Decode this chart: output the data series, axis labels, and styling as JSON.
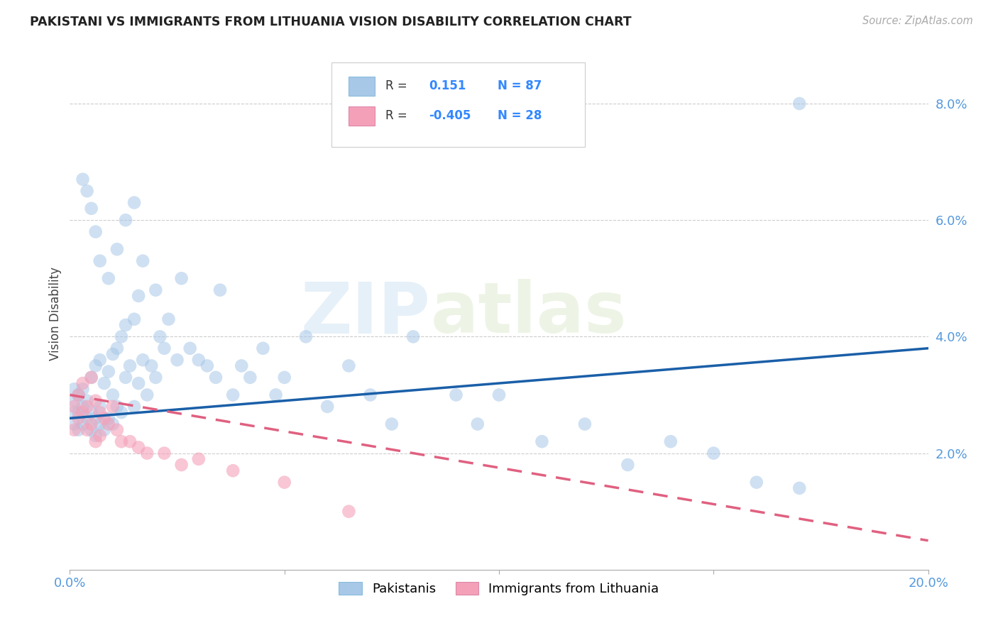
{
  "title": "PAKISTANI VS IMMIGRANTS FROM LITHUANIA VISION DISABILITY CORRELATION CHART",
  "source": "Source: ZipAtlas.com",
  "ylabel": "Vision Disability",
  "xlim": [
    0.0,
    0.2
  ],
  "ylim": [
    0.0,
    0.088
  ],
  "xticks": [
    0.0,
    0.05,
    0.1,
    0.15,
    0.2
  ],
  "xtick_labels": [
    "0.0%",
    "",
    "",
    "",
    "20.0%"
  ],
  "yticks": [
    0.0,
    0.02,
    0.04,
    0.06,
    0.08
  ],
  "ytick_labels": [
    "",
    "2.0%",
    "4.0%",
    "6.0%",
    "8.0%"
  ],
  "blue_R": 0.151,
  "blue_N": 87,
  "pink_R": -0.405,
  "pink_N": 28,
  "blue_color": "#a8c8e8",
  "pink_color": "#f4a0b8",
  "blue_line_color": "#1a5fa8",
  "pink_line_color": "#e06080",
  "watermark_zip": "ZIP",
  "watermark_atlas": "atlas",
  "legend_label_blue": "Pakistanis",
  "legend_label_pink": "Immigrants from Lithuania",
  "blue_scatter_x": [
    0.001,
    0.001,
    0.001,
    0.001,
    0.002,
    0.002,
    0.002,
    0.003,
    0.003,
    0.003,
    0.004,
    0.004,
    0.005,
    0.005,
    0.005,
    0.006,
    0.006,
    0.006,
    0.007,
    0.007,
    0.007,
    0.008,
    0.008,
    0.009,
    0.009,
    0.01,
    0.01,
    0.01,
    0.011,
    0.011,
    0.012,
    0.012,
    0.013,
    0.013,
    0.014,
    0.015,
    0.015,
    0.016,
    0.016,
    0.017,
    0.018,
    0.019,
    0.02,
    0.021,
    0.022,
    0.023,
    0.025,
    0.026,
    0.028,
    0.03,
    0.032,
    0.034,
    0.035,
    0.038,
    0.04,
    0.042,
    0.045,
    0.048,
    0.05,
    0.055,
    0.06,
    0.065,
    0.07,
    0.075,
    0.08,
    0.09,
    0.095,
    0.1,
    0.11,
    0.12,
    0.13,
    0.14,
    0.15,
    0.16,
    0.17,
    0.004,
    0.003,
    0.005,
    0.006,
    0.007,
    0.009,
    0.011,
    0.013,
    0.015,
    0.017,
    0.02,
    0.17
  ],
  "blue_scatter_y": [
    0.025,
    0.027,
    0.029,
    0.031,
    0.024,
    0.027,
    0.03,
    0.025,
    0.028,
    0.031,
    0.026,
    0.029,
    0.024,
    0.027,
    0.033,
    0.023,
    0.026,
    0.035,
    0.025,
    0.028,
    0.036,
    0.024,
    0.032,
    0.026,
    0.034,
    0.025,
    0.03,
    0.037,
    0.028,
    0.038,
    0.027,
    0.04,
    0.033,
    0.042,
    0.035,
    0.028,
    0.043,
    0.032,
    0.047,
    0.036,
    0.03,
    0.035,
    0.033,
    0.04,
    0.038,
    0.043,
    0.036,
    0.05,
    0.038,
    0.036,
    0.035,
    0.033,
    0.048,
    0.03,
    0.035,
    0.033,
    0.038,
    0.03,
    0.033,
    0.04,
    0.028,
    0.035,
    0.03,
    0.025,
    0.04,
    0.03,
    0.025,
    0.03,
    0.022,
    0.025,
    0.018,
    0.022,
    0.02,
    0.015,
    0.014,
    0.065,
    0.067,
    0.062,
    0.058,
    0.053,
    0.05,
    0.055,
    0.06,
    0.063,
    0.053,
    0.048,
    0.08
  ],
  "pink_scatter_x": [
    0.001,
    0.001,
    0.002,
    0.002,
    0.003,
    0.003,
    0.004,
    0.004,
    0.005,
    0.005,
    0.006,
    0.006,
    0.007,
    0.007,
    0.008,
    0.009,
    0.01,
    0.011,
    0.012,
    0.014,
    0.016,
    0.018,
    0.022,
    0.026,
    0.03,
    0.038,
    0.05,
    0.065
  ],
  "pink_scatter_y": [
    0.028,
    0.024,
    0.03,
    0.026,
    0.032,
    0.027,
    0.028,
    0.024,
    0.033,
    0.025,
    0.029,
    0.022,
    0.027,
    0.023,
    0.026,
    0.025,
    0.028,
    0.024,
    0.022,
    0.022,
    0.021,
    0.02,
    0.02,
    0.018,
    0.019,
    0.017,
    0.015,
    0.01
  ],
  "blue_trend_x": [
    0.0,
    0.2
  ],
  "blue_trend_y": [
    0.026,
    0.038
  ],
  "pink_trend_x": [
    0.0,
    0.2
  ],
  "pink_trend_y": [
    0.03,
    0.005
  ]
}
